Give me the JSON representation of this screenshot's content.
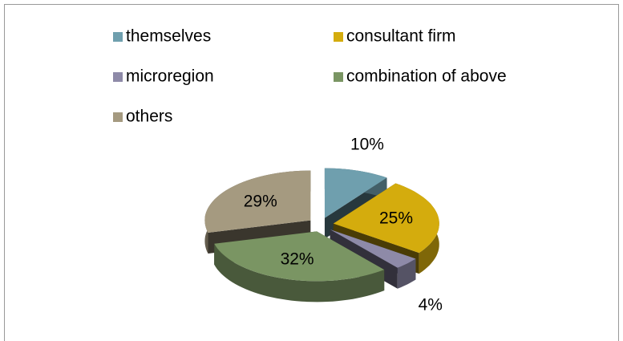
{
  "chart_data": {
    "type": "pie",
    "categories": [
      "themselves",
      "consultant firm",
      "microregion",
      "combination of above",
      "others"
    ],
    "values": [
      10,
      25,
      4,
      32,
      29
    ],
    "value_labels": [
      "10%",
      "25%",
      "4%",
      "32%",
      "29%"
    ],
    "colors": [
      "#6f9fae",
      "#d4ac0d",
      "#8e8aa8",
      "#7a9563",
      "#a59a80"
    ],
    "legend": "top",
    "exploded": true,
    "3d": true
  }
}
